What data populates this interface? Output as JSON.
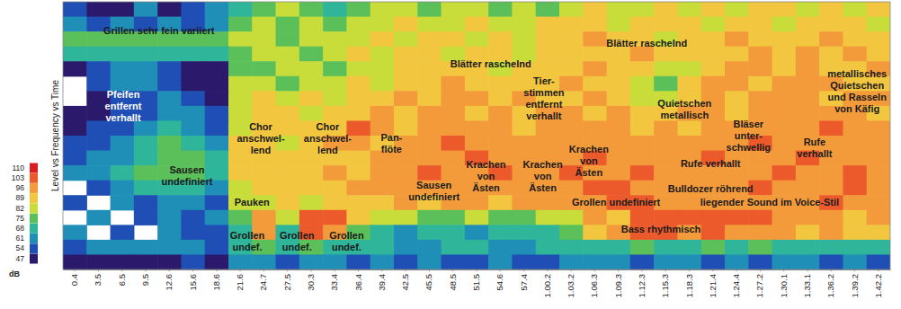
{
  "chart_data": {
    "type": "heatmap",
    "ylabel": "Level vs Frequency vs Time",
    "tick_labels": "x",
    "categories": [
      "0.4",
      "3.5",
      "6.5",
      "9.5",
      "12.6",
      "15.6",
      "18.6",
      "21.6",
      "24.7",
      "27.5",
      "30.3",
      "33.4",
      "36.4",
      "39.4",
      "42.5",
      "45.5",
      "48.5",
      "51.5",
      "54.6",
      "57.4",
      "1.00.2",
      "1.03.2",
      "1.06.3",
      "1.09.3",
      "1.12.3",
      "1.15.3",
      "1.18.3",
      "1.21.4",
      "1.24.4",
      "1.27.2",
      "1.30.1",
      "1.33.1",
      "1.36.2",
      "1.39.2",
      "1.42.2"
    ],
    "z": [
      [
        54,
        47,
        47,
        61,
        47,
        54,
        61,
        68,
        75,
        82,
        75,
        68,
        75,
        82,
        82,
        75,
        82,
        82,
        75,
        82,
        75,
        82,
        89,
        82,
        82,
        89,
        82,
        89,
        82,
        89,
        89,
        82,
        89,
        82,
        89
      ],
      [
        61,
        54,
        61,
        54,
        61,
        54,
        61,
        75,
        82,
        75,
        82,
        75,
        82,
        82,
        89,
        82,
        82,
        89,
        82,
        82,
        89,
        89,
        89,
        82,
        89,
        89,
        89,
        82,
        89,
        89,
        82,
        89,
        89,
        89,
        82
      ],
      [
        75,
        75,
        75,
        75,
        75,
        75,
        75,
        82,
        82,
        75,
        82,
        82,
        82,
        89,
        82,
        89,
        89,
        82,
        89,
        82,
        89,
        89,
        96,
        89,
        89,
        82,
        89,
        89,
        96,
        89,
        89,
        89,
        96,
        89,
        89
      ],
      [
        68,
        68,
        68,
        68,
        68,
        68,
        68,
        75,
        82,
        82,
        75,
        82,
        89,
        82,
        89,
        89,
        82,
        89,
        89,
        82,
        89,
        89,
        89,
        89,
        96,
        89,
        89,
        89,
        89,
        96,
        89,
        96,
        89,
        96,
        89
      ],
      [
        47,
        54,
        61,
        61,
        54,
        47,
        47,
        75,
        75,
        82,
        82,
        75,
        82,
        82,
        89,
        89,
        89,
        89,
        82,
        89,
        89,
        89,
        96,
        89,
        89,
        82,
        82,
        89,
        96,
        96,
        89,
        96,
        89,
        89,
        96
      ],
      [
        null,
        54,
        61,
        61,
        54,
        47,
        47,
        82,
        82,
        75,
        82,
        82,
        89,
        82,
        89,
        89,
        96,
        89,
        89,
        89,
        89,
        96,
        89,
        89,
        82,
        75,
        89,
        96,
        96,
        89,
        96,
        96,
        96,
        89,
        89
      ],
      [
        null,
        47,
        54,
        54,
        61,
        54,
        47,
        82,
        89,
        82,
        89,
        82,
        89,
        89,
        96,
        89,
        96,
        96,
        89,
        96,
        89,
        89,
        96,
        89,
        82,
        82,
        89,
        96,
        89,
        96,
        96,
        96,
        89,
        96,
        96
      ],
      [
        47,
        47,
        54,
        54,
        61,
        61,
        54,
        82,
        89,
        89,
        82,
        89,
        89,
        96,
        89,
        96,
        96,
        89,
        96,
        89,
        96,
        96,
        89,
        96,
        89,
        89,
        96,
        96,
        89,
        96,
        96,
        96,
        96,
        96,
        89
      ],
      [
        47,
        54,
        54,
        61,
        68,
        61,
        54,
        82,
        89,
        89,
        89,
        89,
        103,
        96,
        89,
        96,
        96,
        96,
        96,
        89,
        96,
        96,
        96,
        96,
        89,
        96,
        89,
        96,
        96,
        96,
        96,
        96,
        103,
        96,
        96
      ],
      [
        54,
        54,
        61,
        68,
        75,
        68,
        61,
        89,
        89,
        82,
        89,
        96,
        96,
        89,
        96,
        96,
        103,
        96,
        96,
        96,
        96,
        96,
        96,
        96,
        96,
        96,
        96,
        96,
        96,
        103,
        96,
        96,
        96,
        96,
        96
      ],
      [
        54,
        61,
        61,
        68,
        75,
        75,
        68,
        89,
        89,
        89,
        89,
        89,
        89,
        96,
        96,
        96,
        96,
        103,
        96,
        96,
        96,
        96,
        103,
        96,
        96,
        96,
        96,
        103,
        96,
        96,
        96,
        103,
        96,
        96,
        96
      ],
      [
        61,
        61,
        68,
        75,
        75,
        75,
        68,
        89,
        89,
        89,
        89,
        96,
        89,
        96,
        96,
        103,
        96,
        96,
        103,
        96,
        96,
        103,
        96,
        96,
        103,
        96,
        96,
        96,
        96,
        96,
        103,
        96,
        96,
        103,
        96
      ],
      [
        null,
        54,
        61,
        68,
        68,
        68,
        61,
        82,
        89,
        89,
        89,
        89,
        96,
        96,
        96,
        96,
        96,
        96,
        96,
        96,
        96,
        96,
        103,
        103,
        96,
        96,
        96,
        96,
        96,
        103,
        96,
        96,
        96,
        103,
        96
      ],
      [
        54,
        null,
        61,
        54,
        61,
        61,
        54,
        82,
        82,
        89,
        82,
        89,
        89,
        89,
        96,
        89,
        96,
        96,
        89,
        96,
        96,
        96,
        96,
        103,
        103,
        96,
        96,
        96,
        96,
        96,
        96,
        96,
        103,
        96,
        96
      ],
      [
        null,
        61,
        null,
        54,
        61,
        54,
        61,
        75,
        96,
        82,
        103,
        103,
        89,
        82,
        82,
        75,
        75,
        82,
        75,
        75,
        82,
        82,
        96,
        89,
        103,
        103,
        103,
        103,
        103,
        103,
        96,
        96,
        96,
        89,
        96
      ],
      [
        61,
        null,
        54,
        null,
        61,
        54,
        54,
        68,
        96,
        68,
        103,
        96,
        75,
        68,
        61,
        68,
        68,
        61,
        68,
        68,
        68,
        75,
        89,
        96,
        103,
        103,
        96,
        103,
        96,
        96,
        96,
        89,
        96,
        89,
        89
      ],
      [
        54,
        61,
        61,
        61,
        61,
        61,
        54,
        68,
        75,
        68,
        75,
        68,
        68,
        68,
        61,
        61,
        68,
        68,
        61,
        61,
        68,
        68,
        68,
        68,
        75,
        68,
        68,
        75,
        68,
        75,
        68,
        68,
        68,
        68,
        68
      ],
      [
        47,
        47,
        47,
        47,
        47,
        54,
        47,
        61,
        61,
        54,
        61,
        61,
        54,
        61,
        54,
        61,
        54,
        54,
        61,
        54,
        54,
        61,
        61,
        61,
        54,
        61,
        61,
        54,
        61,
        54,
        61,
        61,
        54,
        61,
        54
      ]
    ],
    "colorbar": {
      "label": "dB",
      "range": [
        47,
        110
      ],
      "ticks": [
        47,
        54,
        61,
        68,
        75,
        82,
        89,
        96,
        103,
        110
      ],
      "colors": [
        "#2b1a6b",
        "#1f4fb5",
        "#1f8fb8",
        "#2fb59a",
        "#5cc05a",
        "#c8dc3a",
        "#f3c640",
        "#f39a3a",
        "#ec5a2c",
        "#d81e23"
      ]
    },
    "annotations": [
      {
        "text": [
          "Grillen sehr fein variiert"
        ],
        "x": 3.56,
        "y": 1.43
      },
      {
        "text": [
          "Pfeifen",
          "entfernt",
          "verhallt"
        ],
        "x": 2.05,
        "y": 6.5,
        "color": "#ffffff"
      },
      {
        "text": [
          "Sausen",
          "undefiniert"
        ],
        "x": 4.75,
        "y": 11.2
      },
      {
        "text": [
          "Chor",
          "anschwel-",
          "lend"
        ],
        "x": 7.87,
        "y": 8.7
      },
      {
        "text": [
          "Chor",
          "anschwel-",
          "lend"
        ],
        "x": 10.7,
        "y": 8.7
      },
      {
        "text": [
          "Pan-",
          "flöte"
        ],
        "x": 13.4,
        "y": 9.0
      },
      {
        "text": [
          "Sausen",
          "undefiniert"
        ],
        "x": 15.2,
        "y": 12.2
      },
      {
        "text": [
          "Krachen",
          "von",
          "Ästen"
        ],
        "x": 17.4,
        "y": 11.2
      },
      {
        "text": [
          "Krachen",
          "von",
          "Ästen"
        ],
        "x": 19.8,
        "y": 11.2
      },
      {
        "text": [
          "Krachen",
          "von",
          "Ästen"
        ],
        "x": 21.75,
        "y": 10.2
      },
      {
        "text": [
          "Tier-",
          "stimmen",
          "entfernt",
          "verhallt"
        ],
        "x": 19.85,
        "y": 6.0
      },
      {
        "text": [
          "Blätter raschelnd"
        ],
        "x": 17.6,
        "y": 3.7
      },
      {
        "text": [
          "Blätter raschelnd"
        ],
        "x": 24.2,
        "y": 2.3
      },
      {
        "text": [
          "metallisches",
          "Quietschen",
          "und Rasseln",
          "von Käfig"
        ],
        "x": 33.1,
        "y": 5.5
      },
      {
        "text": [
          "Quietschen",
          "metallisch"
        ],
        "x": 25.8,
        "y": 6.7
      },
      {
        "text": [
          "Bläser",
          "unter-",
          "schwellig"
        ],
        "x": 28.5,
        "y": 8.5
      },
      {
        "text": [
          "Rufe",
          "verhallt"
        ],
        "x": 31.3,
        "y": 9.3
      },
      {
        "text": [
          "Rufe verhallt"
        ],
        "x": 26.9,
        "y": 10.4
      },
      {
        "text": [
          "Bulldozer röhrend"
        ],
        "x": 26.9,
        "y": 12.1
      },
      {
        "text": [
          "Grollen undefiniert"
        ],
        "x": 22.9,
        "y": 13.0
      },
      {
        "text": [
          "liegender Sound im Voice-Stil"
        ],
        "x": 29.4,
        "y": 13.0
      },
      {
        "text": [
          "Bass rhythmisch"
        ],
        "x": 24.8,
        "y": 14.8
      },
      {
        "text": [
          "Pauken"
        ],
        "x": 7.5,
        "y": 13.0
      },
      {
        "text": [
          "Grollen",
          "undef."
        ],
        "x": 7.3,
        "y": 15.6
      },
      {
        "text": [
          "Grollen",
          "undef."
        ],
        "x": 9.4,
        "y": 15.6
      },
      {
        "text": [
          "Grollen",
          "undef."
        ],
        "x": 11.5,
        "y": 15.6
      }
    ]
  }
}
